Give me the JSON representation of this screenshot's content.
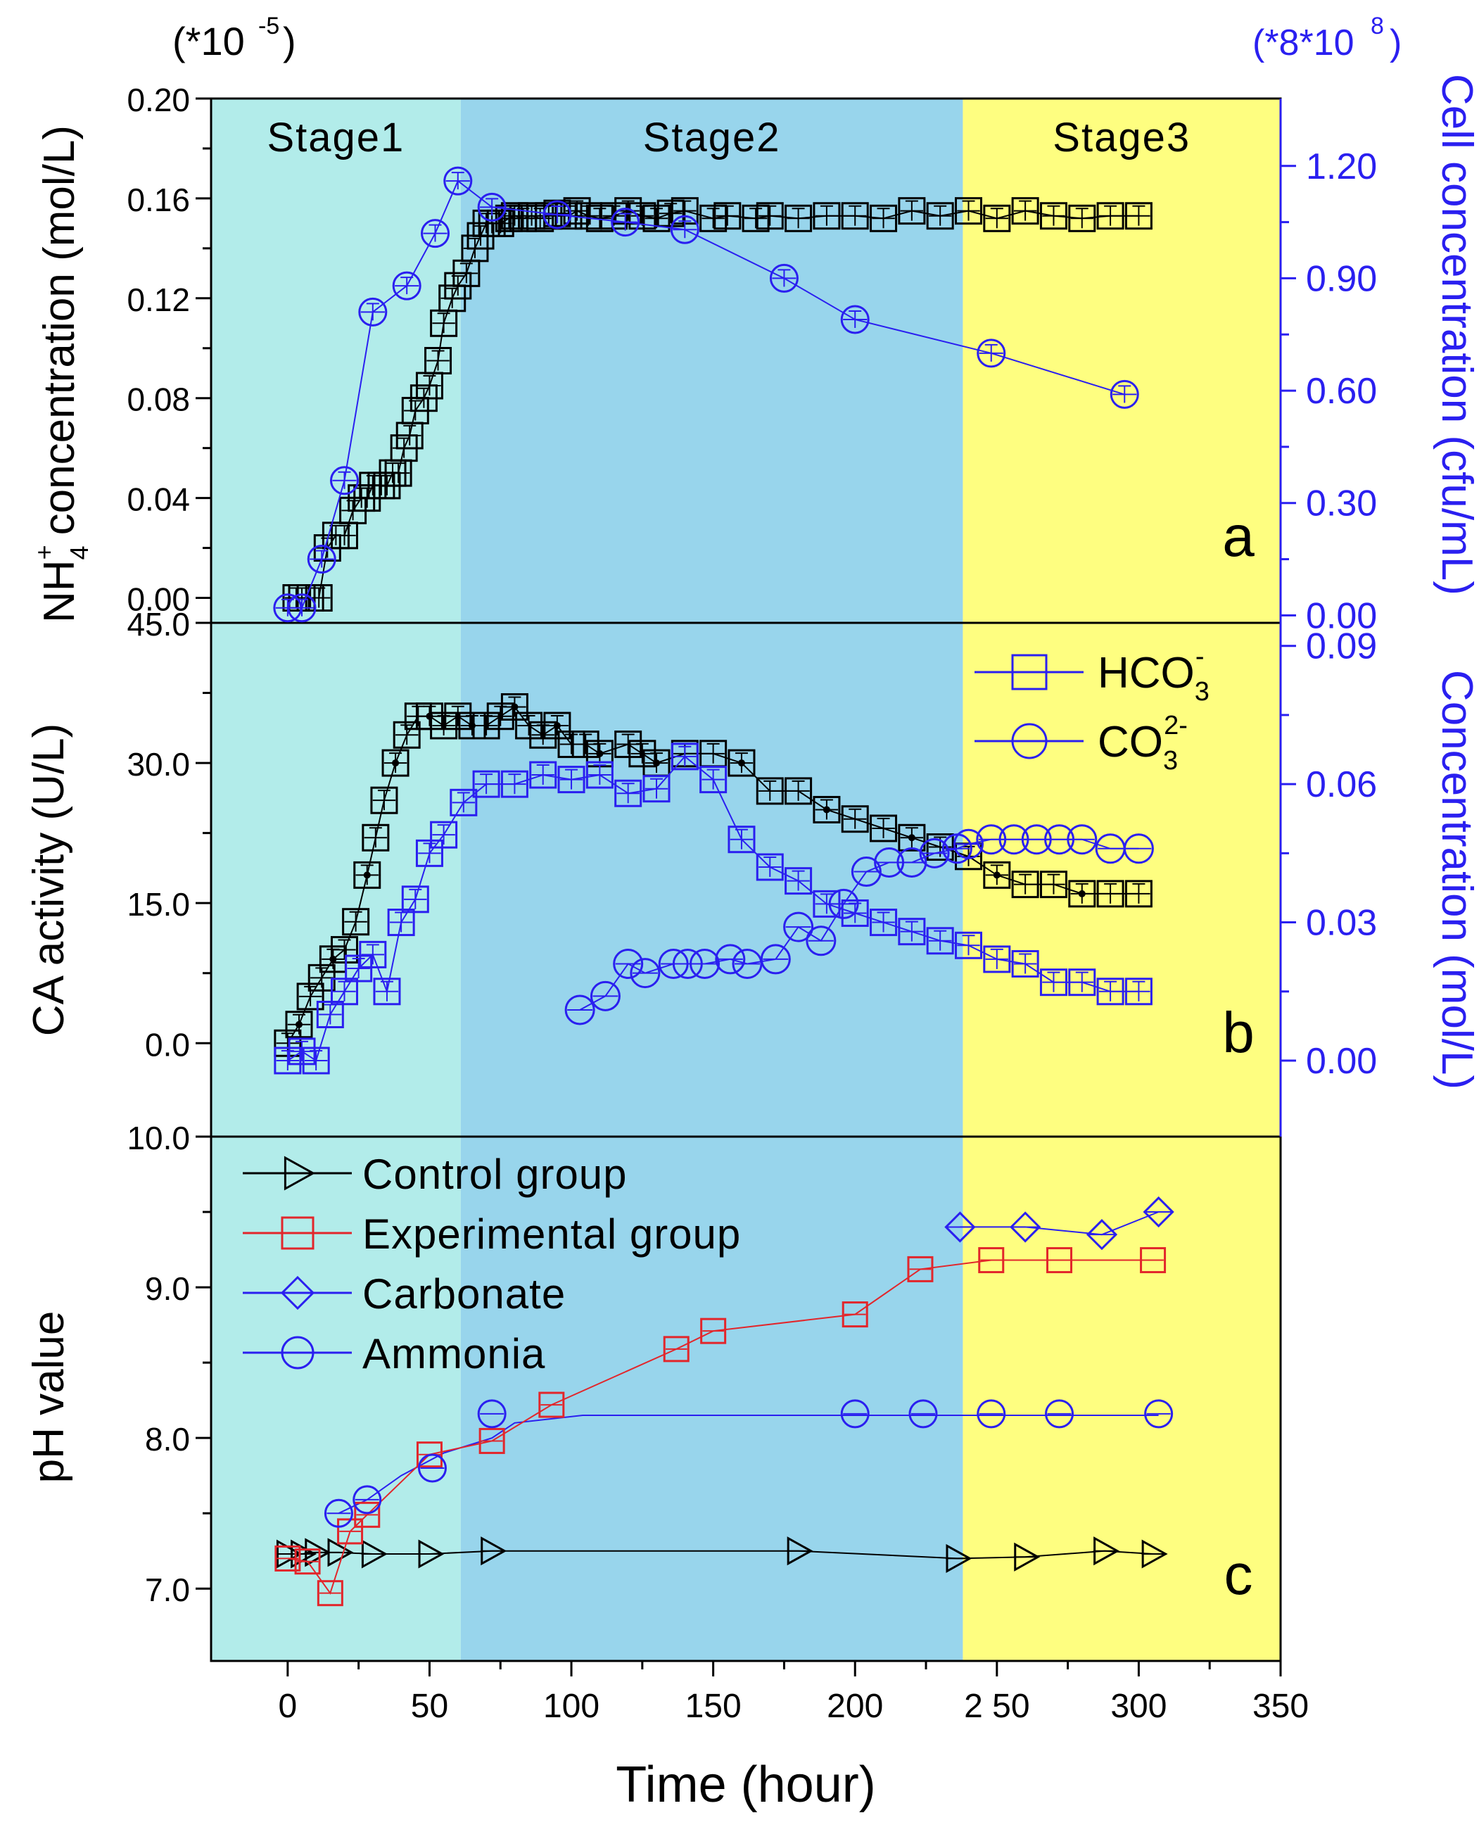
{
  "colors": {
    "stage1": "#b2ecea",
    "stage2": "#98d5ec",
    "stage3": "#fefe80",
    "black": "#000000",
    "blue": "#2a1ff0",
    "red": "#e2262b"
  },
  "chart_data": [
    {
      "panel": "a",
      "type": "line",
      "scale_note_left": "(*10",
      "scale_note_left_exp": "-5",
      "scale_note_left_close": ")",
      "scale_note_right": "(*8*10",
      "scale_note_right_exp": "8",
      "scale_note_right_close": ")",
      "ylabel_main": "NH",
      "ylabel_sub": "4",
      "ylabel_sup": "+",
      "ylabel_rest": "concentration (mol/L)",
      "y2label": "Cell concentration (cfu/mL)",
      "panel_letter": "a",
      "stage_labels": [
        "Stage1",
        "Stage2",
        "Stage3"
      ],
      "stages": [
        [
          -27,
          61
        ],
        [
          61,
          238
        ],
        [
          238,
          350
        ]
      ],
      "xlim": [
        -27,
        350
      ],
      "ylim": [
        -0.01,
        0.2
      ],
      "y_ticks": [
        0.0,
        0.04,
        0.08,
        0.12,
        0.16,
        0.2
      ],
      "y_tick_labels": [
        "0.00",
        "0.04",
        "0.08",
        "0.12",
        "0.16",
        "0.20"
      ],
      "y2lim": [
        -0.02,
        1.38
      ],
      "y2_ticks": [
        0.0,
        0.3,
        0.6,
        0.9,
        1.2
      ],
      "y2_tick_labels": [
        "0.00",
        "0.30",
        "0.60",
        "0.90",
        "1.20"
      ],
      "series": [
        {
          "name": "NH4+",
          "axis": "left",
          "color": "black",
          "marker": "square",
          "x": [
            3,
            5,
            8,
            11,
            14,
            17,
            20,
            23,
            26,
            28,
            30,
            33,
            35,
            37,
            39,
            41,
            43,
            45,
            48,
            50,
            53,
            55,
            58,
            60,
            63,
            66,
            68,
            70,
            72,
            75,
            78,
            80,
            83,
            86,
            89,
            92,
            95,
            99,
            102,
            106,
            110,
            115,
            120,
            125,
            130,
            135,
            140,
            150,
            155,
            165,
            170,
            180,
            190,
            200,
            210,
            220,
            230,
            240,
            250,
            260,
            270,
            280,
            290,
            300
          ],
          "y": [
            0.0,
            0.0,
            0.0,
            0.0,
            0.02,
            0.025,
            0.025,
            0.035,
            0.04,
            0.04,
            0.045,
            0.045,
            0.045,
            0.05,
            0.05,
            0.06,
            0.065,
            0.075,
            0.08,
            0.085,
            0.095,
            0.11,
            0.12,
            0.125,
            0.13,
            0.14,
            0.145,
            0.15,
            0.15,
            0.15,
            0.152,
            0.153,
            0.152,
            0.153,
            0.152,
            0.153,
            0.154,
            0.153,
            0.155,
            0.153,
            0.152,
            0.153,
            0.155,
            0.153,
            0.152,
            0.154,
            0.155,
            0.152,
            0.153,
            0.152,
            0.153,
            0.152,
            0.153,
            0.153,
            0.152,
            0.155,
            0.153,
            0.155,
            0.152,
            0.155,
            0.153,
            0.152,
            0.153,
            0.153
          ]
        },
        {
          "name": "Cell concentration",
          "axis": "right",
          "color": "blue",
          "marker": "circle",
          "x": [
            0,
            5,
            12,
            20,
            30,
            42,
            52,
            60,
            72,
            95,
            119,
            140,
            175,
            200,
            248,
            295
          ],
          "y": [
            0.02,
            0.02,
            0.15,
            0.36,
            0.81,
            0.88,
            1.02,
            1.16,
            1.09,
            1.07,
            1.05,
            1.03,
            0.9,
            0.79,
            0.7,
            0.59
          ]
        }
      ]
    },
    {
      "panel": "b",
      "type": "line",
      "ylabel": "CA activity (U/L)",
      "y2label": "Concentration (mol/L)",
      "panel_letter": "b",
      "xlim": [
        -27,
        350
      ],
      "ylim": [
        -10,
        45
      ],
      "y_ticks": [
        0,
        15,
        30,
        45
      ],
      "y_tick_labels": [
        "0.0",
        "15.0",
        "30.0",
        "45.0"
      ],
      "y2lim": [
        -0.0165,
        0.095
      ],
      "y2_ticks": [
        0.0,
        0.03,
        0.06,
        0.09
      ],
      "y2_tick_labels": [
        "0.00",
        "0.03",
        "0.06",
        "0.09"
      ],
      "legend": [
        {
          "label_main": "HCO",
          "label_sub": "3",
          "label_sup": "-",
          "color": "blue",
          "marker": "square"
        },
        {
          "label_main": "CO",
          "label_sub": "3",
          "label_sup": "2-",
          "color": "blue",
          "marker": "circle"
        }
      ],
      "series": [
        {
          "name": "CA activity",
          "axis": "left",
          "color": "black",
          "marker": "square",
          "x": [
            0,
            4,
            8,
            12,
            16,
            20,
            24,
            28,
            31,
            34,
            38,
            42,
            46,
            50,
            55,
            60,
            65,
            70,
            75,
            80,
            85,
            90,
            95,
            100,
            105,
            110,
            120,
            125,
            130,
            140,
            150,
            160,
            170,
            180,
            190,
            200,
            210,
            220,
            230,
            240,
            250,
            260,
            270,
            280,
            290,
            300
          ],
          "y": [
            0,
            2,
            5,
            7,
            9,
            10,
            13,
            18,
            22,
            26,
            30,
            33,
            35,
            35,
            34,
            35,
            34,
            34,
            35,
            36,
            34,
            33,
            34,
            32,
            32,
            31,
            32,
            31,
            30,
            31,
            31,
            30,
            27,
            27,
            25,
            24,
            23,
            22,
            21,
            20,
            18,
            17,
            17,
            16,
            16,
            16
          ]
        },
        {
          "name": "HCO3-",
          "axis": "right",
          "color": "blue",
          "marker": "square",
          "x": [
            0,
            5,
            10,
            15,
            20,
            25,
            30,
            35,
            40,
            45,
            50,
            55,
            62,
            70,
            80,
            90,
            100,
            110,
            120,
            130,
            140,
            150,
            160,
            170,
            180,
            190,
            200,
            210,
            220,
            230,
            240,
            250,
            260,
            270,
            280,
            290,
            300
          ],
          "y": [
            0.0,
            0.002,
            0.0,
            0.01,
            0.015,
            0.02,
            0.023,
            0.015,
            0.03,
            0.035,
            0.045,
            0.049,
            0.056,
            0.06,
            0.06,
            0.062,
            0.061,
            0.062,
            0.058,
            0.059,
            0.066,
            0.061,
            0.048,
            0.042,
            0.039,
            0.034,
            0.032,
            0.03,
            0.028,
            0.026,
            0.025,
            0.022,
            0.021,
            0.017,
            0.017,
            0.015,
            0.015
          ]
        },
        {
          "name": "CO3 2-",
          "axis": "right",
          "color": "blue",
          "marker": "circle",
          "x": [
            103,
            112,
            120,
            126,
            136,
            141,
            147,
            156,
            162,
            172,
            180,
            188,
            196,
            204,
            212,
            220,
            228,
            236,
            240,
            248,
            256,
            264,
            272,
            280,
            290,
            300
          ],
          "y": [
            0.011,
            0.014,
            0.021,
            0.019,
            0.021,
            0.021,
            0.021,
            0.022,
            0.021,
            0.022,
            0.029,
            0.026,
            0.034,
            0.041,
            0.043,
            0.043,
            0.045,
            0.046,
            0.047,
            0.048,
            0.048,
            0.048,
            0.048,
            0.048,
            0.046,
            0.046
          ]
        }
      ]
    },
    {
      "panel": "c",
      "type": "line",
      "ylabel": "pH value",
      "panel_letter": "c",
      "xlabel": "Time (hour)",
      "xlim": [
        -27,
        350
      ],
      "x_ticks": [
        0,
        50,
        100,
        150,
        200,
        250,
        300,
        350
      ],
      "x_tick_labels": [
        "0",
        "50",
        "100",
        "150",
        "200",
        "2 50",
        "300",
        "350"
      ],
      "ylim": [
        6.52,
        10.0
      ],
      "y_ticks": [
        7.0,
        8.0,
        9.0,
        10.0
      ],
      "y_tick_labels": [
        "7.0",
        "8.0",
        "9.0",
        "10.0"
      ],
      "legend": [
        {
          "label": "Control group",
          "color": "black",
          "marker": "triangle"
        },
        {
          "label": "Experimental group",
          "color": "red",
          "marker": "square"
        },
        {
          "label": "Carbonate",
          "color": "blue",
          "marker": "diamond"
        },
        {
          "label": "Ammonia",
          "color": "blue",
          "marker": "circle"
        }
      ],
      "series": [
        {
          "name": "Control group",
          "color": "black",
          "marker": "triangle",
          "x": [
            0,
            5,
            10,
            18,
            30,
            50,
            72,
            180,
            236,
            260,
            288,
            305
          ],
          "y": [
            7.23,
            7.23,
            7.24,
            7.24,
            7.23,
            7.23,
            7.25,
            7.25,
            7.2,
            7.21,
            7.25,
            7.23
          ]
        },
        {
          "name": "Experimental group",
          "color": "red",
          "marker": "square",
          "x": [
            0,
            7,
            15,
            22,
            28,
            50,
            72,
            93,
            137,
            150,
            200,
            223,
            248,
            272,
            305
          ],
          "y": [
            7.2,
            7.18,
            6.97,
            7.38,
            7.49,
            7.89,
            7.98,
            8.22,
            8.59,
            8.71,
            8.82,
            9.12,
            9.18,
            9.18,
            9.18
          ]
        },
        {
          "name": "Carbonate",
          "color": "blue",
          "marker": "diamond",
          "x": [
            237,
            260,
            287,
            307
          ],
          "y": [
            9.4,
            9.4,
            9.35,
            9.5
          ]
        },
        {
          "name": "Ammonia",
          "color": "blue",
          "marker": "circle",
          "x": [
            18,
            28,
            51,
            72,
            200,
            224,
            248,
            272,
            307
          ],
          "y": [
            7.5,
            7.59,
            7.8,
            8.16,
            8.16,
            8.16,
            8.16,
            8.16,
            8.16
          ]
        },
        {
          "name": "Ammonia line",
          "color": "blue",
          "marker": "none",
          "x": [
            18,
            28,
            40,
            55,
            72,
            80,
            104,
            200,
            307
          ],
          "y": [
            7.5,
            7.59,
            7.75,
            7.9,
            8.0,
            8.1,
            8.15,
            8.15,
            8.15
          ]
        }
      ]
    }
  ]
}
